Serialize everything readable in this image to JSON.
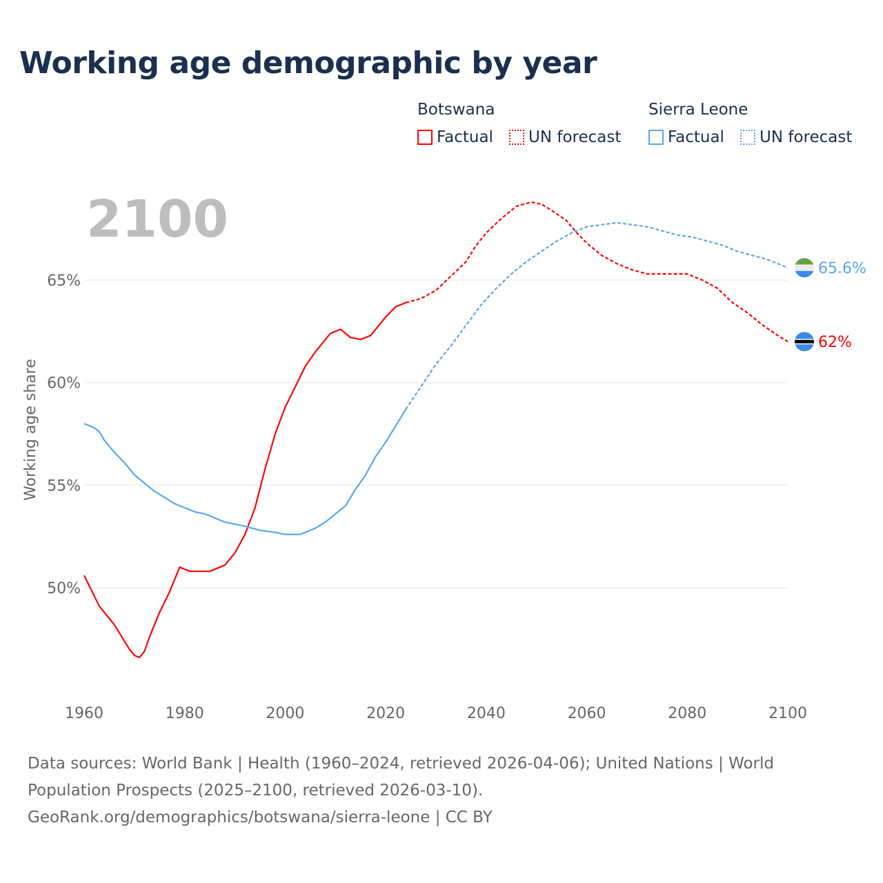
{
  "title": "Working age demographic by year",
  "legend": {
    "groups": [
      {
        "country": "Botswana",
        "factual": "Factual",
        "forecast": "UN forecast",
        "color": "#ff0000"
      },
      {
        "country": "Sierra Leone",
        "factual": "Factual",
        "forecast": "UN forecast",
        "color": "#5aa5ee"
      }
    ]
  },
  "footer": {
    "line1": "Data sources: World Bank | Health (1960–2024, retrieved 2026-04-06); United Nations | World",
    "line2": "Population Prospects (2025–2100, retrieved 2026-03-10).",
    "line3": "GeoRank.org/demographics/botswana/sierra-leone | CC BY"
  },
  "chart_data": {
    "type": "line",
    "title": "Working age demographic by year",
    "year_label": "2100",
    "ylabel": "Working age share",
    "xlabel": "",
    "xlim": [
      1960,
      2100
    ],
    "ylim": [
      45.5,
      69.5
    ],
    "x_ticks": [
      "1960",
      "1980",
      "2000",
      "2020",
      "2040",
      "2060",
      "2080",
      "2100"
    ],
    "y_ticks": [
      {
        "v": 50,
        "label": "50%"
      },
      {
        "v": 55,
        "label": "55%"
      },
      {
        "v": 60,
        "label": "60%"
      },
      {
        "v": 65,
        "label": "65%"
      }
    ],
    "grid": true,
    "forecast_start": 2024,
    "series": [
      {
        "name": "Botswana",
        "color": "#ff0000",
        "end_label": "62%",
        "points": [
          [
            1960,
            50.6
          ],
          [
            1963,
            49.1
          ],
          [
            1966,
            48.2
          ],
          [
            1969,
            47.0
          ],
          [
            1970,
            46.7
          ],
          [
            1971,
            46.6
          ],
          [
            1972,
            46.9
          ],
          [
            1973,
            47.6
          ],
          [
            1975,
            48.8
          ],
          [
            1977,
            49.8
          ],
          [
            1979,
            51.0
          ],
          [
            1981,
            50.8
          ],
          [
            1985,
            50.8
          ],
          [
            1986,
            50.9
          ],
          [
            1988,
            51.1
          ],
          [
            1990,
            51.7
          ],
          [
            1992,
            52.6
          ],
          [
            1994,
            53.9
          ],
          [
            1996,
            55.8
          ],
          [
            1998,
            57.5
          ],
          [
            2000,
            58.8
          ],
          [
            2002,
            59.8
          ],
          [
            2004,
            60.8
          ],
          [
            2006,
            61.5
          ],
          [
            2009,
            62.4
          ],
          [
            2011,
            62.6
          ],
          [
            2013,
            62.2
          ],
          [
            2015,
            62.1
          ],
          [
            2017,
            62.3
          ],
          [
            2020,
            63.2
          ],
          [
            2022,
            63.7
          ],
          [
            2024,
            63.9
          ],
          [
            2027,
            64.1
          ],
          [
            2030,
            64.5
          ],
          [
            2033,
            65.2
          ],
          [
            2036,
            65.9
          ],
          [
            2038,
            66.7
          ],
          [
            2040,
            67.3
          ],
          [
            2043,
            68.0
          ],
          [
            2046,
            68.6
          ],
          [
            2049,
            68.8
          ],
          [
            2051,
            68.7
          ],
          [
            2053,
            68.4
          ],
          [
            2056,
            67.9
          ],
          [
            2058,
            67.3
          ],
          [
            2060,
            66.8
          ],
          [
            2063,
            66.2
          ],
          [
            2066,
            65.8
          ],
          [
            2069,
            65.5
          ],
          [
            2072,
            65.3
          ],
          [
            2080,
            65.3
          ],
          [
            2083,
            65.0
          ],
          [
            2086,
            64.6
          ],
          [
            2089,
            63.9
          ],
          [
            2092,
            63.4
          ],
          [
            2095,
            62.8
          ],
          [
            2098,
            62.3
          ],
          [
            2100,
            62.0
          ]
        ]
      },
      {
        "name": "Sierra Leone",
        "color": "#5aa5ee",
        "end_label": "65.6%",
        "points": [
          [
            1960,
            58.0
          ],
          [
            1962,
            57.8
          ],
          [
            1963,
            57.6
          ],
          [
            1964,
            57.2
          ],
          [
            1966,
            56.6
          ],
          [
            1968,
            56.1
          ],
          [
            1970,
            55.5
          ],
          [
            1972,
            55.1
          ],
          [
            1974,
            54.7
          ],
          [
            1976,
            54.4
          ],
          [
            1978,
            54.1
          ],
          [
            1980,
            53.9
          ],
          [
            1982,
            53.7
          ],
          [
            1984,
            53.6
          ],
          [
            1986,
            53.4
          ],
          [
            1988,
            53.2
          ],
          [
            1990,
            53.1
          ],
          [
            1992,
            53.0
          ],
          [
            1995,
            52.8
          ],
          [
            1998,
            52.7
          ],
          [
            2000,
            52.6
          ],
          [
            2003,
            52.6
          ],
          [
            2006,
            52.9
          ],
          [
            2008,
            53.2
          ],
          [
            2010,
            53.6
          ],
          [
            2012,
            54.0
          ],
          [
            2014,
            54.8
          ],
          [
            2016,
            55.5
          ],
          [
            2018,
            56.4
          ],
          [
            2020,
            57.1
          ],
          [
            2022,
            57.9
          ],
          [
            2024,
            58.7
          ],
          [
            2027,
            59.8
          ],
          [
            2030,
            60.9
          ],
          [
            2033,
            61.8
          ],
          [
            2036,
            62.8
          ],
          [
            2039,
            63.8
          ],
          [
            2042,
            64.6
          ],
          [
            2045,
            65.3
          ],
          [
            2048,
            65.9
          ],
          [
            2051,
            66.4
          ],
          [
            2054,
            66.9
          ],
          [
            2057,
            67.3
          ],
          [
            2060,
            67.6
          ],
          [
            2063,
            67.7
          ],
          [
            2066,
            67.8
          ],
          [
            2069,
            67.7
          ],
          [
            2072,
            67.6
          ],
          [
            2075,
            67.4
          ],
          [
            2078,
            67.2
          ],
          [
            2081,
            67.1
          ],
          [
            2084,
            66.9
          ],
          [
            2087,
            66.7
          ],
          [
            2090,
            66.4
          ],
          [
            2093,
            66.2
          ],
          [
            2096,
            66.0
          ],
          [
            2100,
            65.6
          ]
        ]
      }
    ]
  }
}
